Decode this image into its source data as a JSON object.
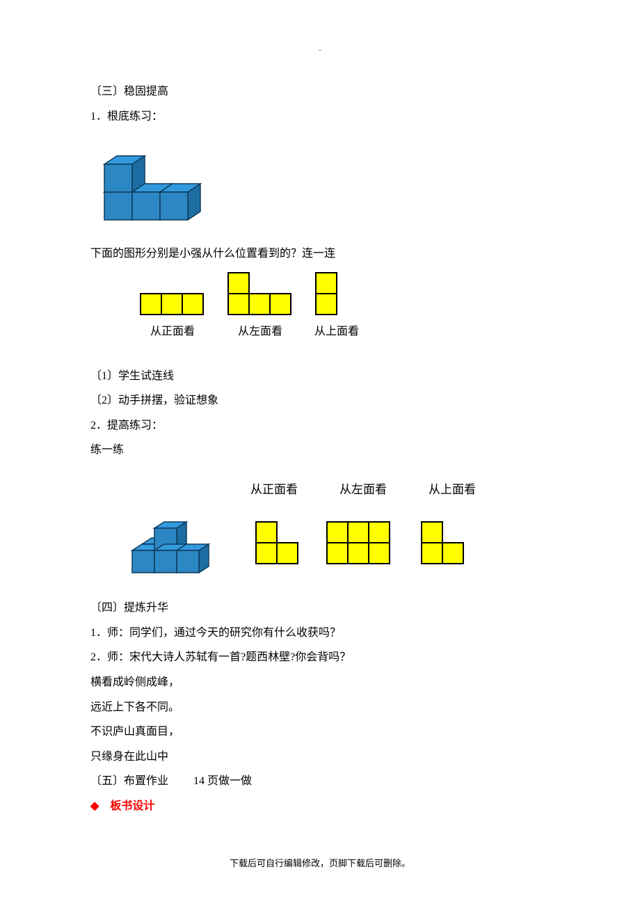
{
  "dot": ".",
  "s3_heading": "〔三〕稳固提高",
  "s3_item1": "1．根底练习：",
  "cube1": {
    "face_light": "#3399dd",
    "face_mid": "#2d87c3",
    "face_dark": "#1d6ca3",
    "stroke": "#0d3b5c",
    "unit": 40
  },
  "q1_text": "下面的图形分别是小强从什么位置看到的？连一连",
  "views": {
    "fill": "#ffff00",
    "stroke": "#000000",
    "cell": 30,
    "labels": {
      "front": "从正面看",
      "left": "从左面看",
      "top": "从上面看"
    }
  },
  "s3_sub1": "〔1〕学生试连线",
  "s3_sub2": "〔2〕动手拼摆，验证想象",
  "s3_item2": "2．提高练习：",
  "s3_item2b": "练一练",
  "cube2": {
    "face_light": "#3399dd",
    "face_mid": "#2d87c3",
    "face_dark": "#1d6ca3",
    "stroke": "#0d3b5c",
    "unit": 32
  },
  "s4_heading": "〔四〕提炼升华",
  "s4_l1": "1．师：同学们，通过今天的研究你有什么收获吗？",
  "s4_l2": "2．师：宋代大诗人苏轼有一首?题西林壁?你会背吗？",
  "poem1": "横看成岭侧成峰，",
  "poem2": "远近上下各不同。",
  "poem3": "不识庐山真面目，",
  "poem4": "只缘身在此山中",
  "s5_heading": "〔五〕布置作业　　 14 页做一做",
  "diamond": "◆",
  "board_design": "板书设计",
  "footer": "下载后可自行编辑修改，页脚下载后可删除。"
}
